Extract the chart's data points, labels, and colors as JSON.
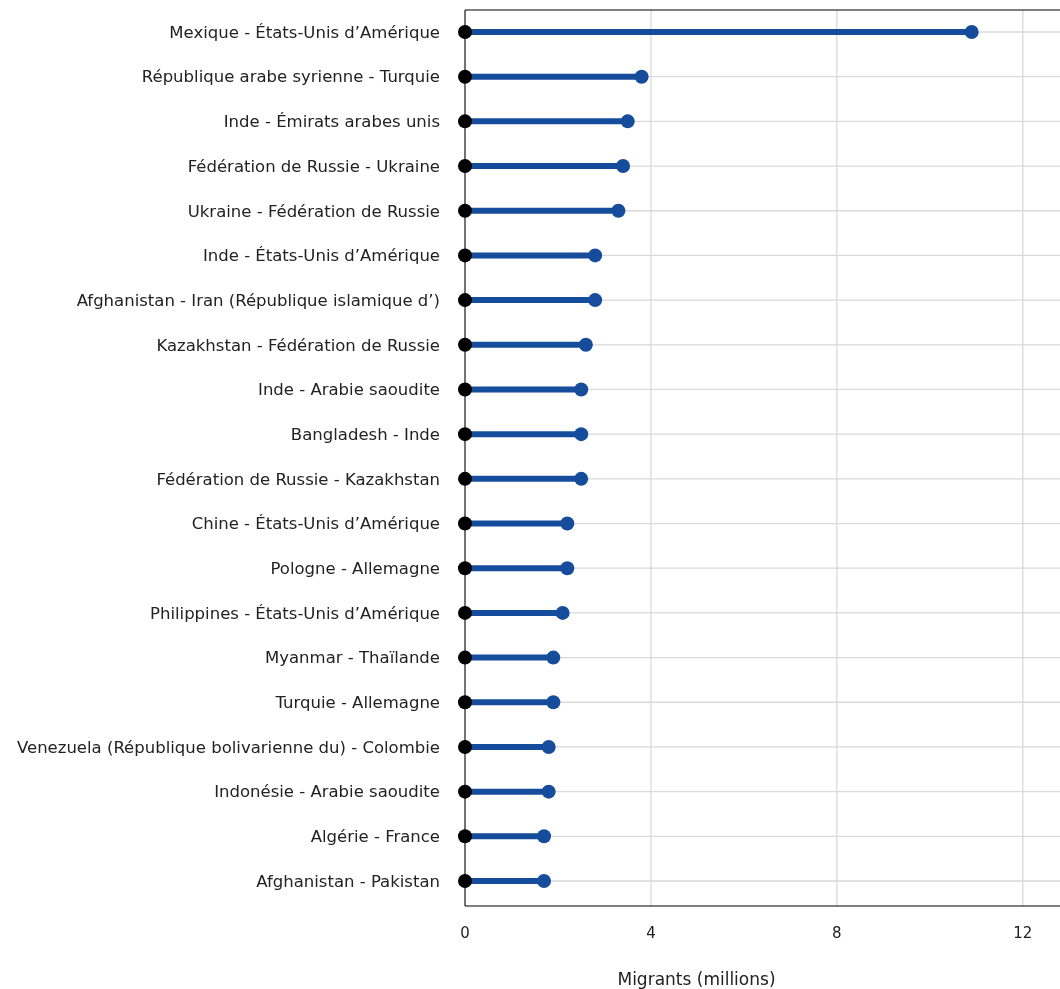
{
  "chart_data": {
    "type": "lollipop",
    "orientation": "horizontal",
    "xlabel": "Migrants (millions)",
    "categories": [
      "Mexique - États-Unis d’Amérique",
      "République arabe syrienne - Turquie",
      "Inde - Émirats arabes unis",
      "Fédération de Russie - Ukraine",
      "Ukraine - Fédération de Russie",
      "Inde - États-Unis d’Amérique",
      "Afghanistan - Iran (République islamique d’)",
      "Kazakhstan - Fédération de Russie",
      "Inde - Arabie saoudite",
      "Bangladesh - Inde",
      "Fédération de Russie - Kazakhstan",
      "Chine - États-Unis d’Amérique",
      "Pologne - Allemagne",
      "Philippines - États-Unis d’Amérique",
      "Myanmar - Thaïlande",
      "Turquie - Allemagne",
      "Venezuela (République bolivarienne du) - Colombie",
      "Indonésie - Arabie saoudite",
      "Algérie - France",
      "Afghanistan - Pakistan"
    ],
    "series": [
      {
        "color": "#164c9c",
        "values": [
          10.9,
          3.8,
          3.5,
          3.4,
          3.3,
          2.8,
          2.8,
          2.6,
          2.5,
          2.5,
          2.5,
          2.2,
          2.2,
          2.1,
          1.9,
          1.9,
          1.8,
          1.8,
          1.7,
          1.7
        ]
      },
      {
        "type": "scatter",
        "color": "#000000",
        "values": [
          0,
          0,
          0,
          0,
          0,
          0,
          0,
          0,
          0,
          0,
          0,
          0,
          0,
          0,
          0,
          0,
          0,
          0,
          0,
          0
        ]
      }
    ],
    "xlim": [
      0,
      12.8
    ],
    "xticks": [
      0,
      4,
      8,
      12
    ],
    "grid": true,
    "marker": "circle"
  }
}
